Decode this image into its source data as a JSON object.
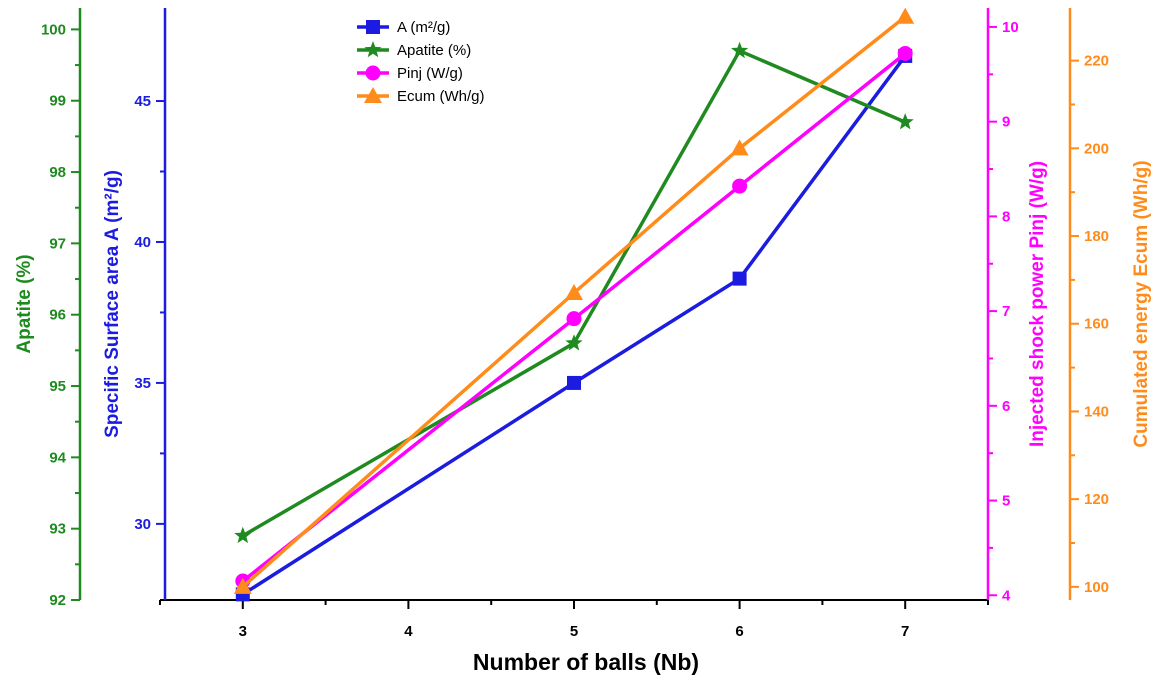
{
  "chart_data": {
    "type": "line",
    "xlabel": "Number of balls (Nb)",
    "x_ticks": [
      3,
      4,
      5,
      6,
      7
    ],
    "xlim": [
      2.5,
      7.5
    ],
    "axes": {
      "apatite": {
        "label": "Apatite (%)",
        "color": "#1f8a1f",
        "ylim": [
          92,
          100.3
        ],
        "ticks": [
          92,
          93,
          94,
          95,
          96,
          97,
          98,
          99,
          100
        ]
      },
      "surface": {
        "label": "Specific Surface area A (m²/g)",
        "color": "#1c1ce0",
        "ylim": [
          27.3,
          48.3
        ],
        "ticks": [
          30,
          35,
          40,
          45
        ]
      },
      "pinj": {
        "label": "Injected shock power  Pinj (W/g)",
        "color": "#ff00ff",
        "ylim": [
          3.95,
          10.2
        ],
        "ticks": [
          4,
          5,
          6,
          7,
          8,
          9,
          10
        ]
      },
      "ecum": {
        "label": "Cumulated energy  Ecum (Wh/g)",
        "color": "#ff8c1a",
        "ylim": [
          97,
          232
        ],
        "ticks": [
          100,
          120,
          140,
          160,
          180,
          200,
          220
        ]
      }
    },
    "series": [
      {
        "name": "A (m²/g)",
        "axis": "surface",
        "marker": "square",
        "x": [
          3,
          5,
          6,
          7
        ],
        "y": [
          27.5,
          35.0,
          38.7,
          46.6
        ]
      },
      {
        "name": "Apatite (%)",
        "axis": "apatite",
        "marker": "star",
        "x": [
          3,
          5,
          6,
          7
        ],
        "y": [
          92.9,
          95.6,
          99.7,
          98.7
        ]
      },
      {
        "name": "Pinj (W/g)",
        "axis": "pinj",
        "marker": "circle",
        "x": [
          3,
          5,
          6,
          7
        ],
        "y": [
          4.15,
          6.92,
          8.32,
          9.72
        ]
      },
      {
        "name": "Ecum (Wh/g)",
        "axis": "ecum",
        "marker": "triangle",
        "x": [
          3,
          5,
          6,
          7
        ],
        "y": [
          100,
          167,
          200,
          230
        ]
      }
    ]
  }
}
